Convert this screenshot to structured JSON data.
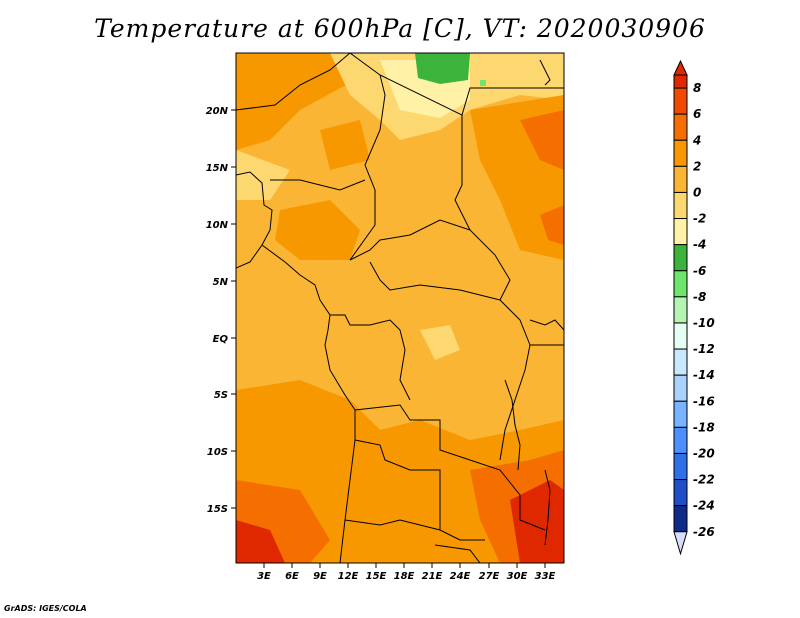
{
  "title": "Temperature at 600hPa [C], VT: 2020030906",
  "credit": "GrADS: IGES/COLA",
  "map": {
    "lat_ticks": [
      "20N",
      "15N",
      "10N",
      "5N",
      "EQ",
      "5S",
      "10S",
      "15S"
    ],
    "lon_ticks": [
      "3E",
      "6E",
      "9E",
      "12E",
      "15E",
      "18E",
      "21E",
      "24E",
      "27E",
      "30E",
      "33E"
    ]
  },
  "colorbar": {
    "levels": [
      "8",
      "6",
      "4",
      "2",
      "0",
      "-2",
      "-4",
      "-6",
      "-8",
      "-10",
      "-12",
      "-14",
      "-16",
      "-18",
      "-20",
      "-22",
      "-24",
      "-26"
    ],
    "colors": [
      "#e02800",
      "#f04a00",
      "#f46f00",
      "#f89800",
      "#fbb535",
      "#fdd770",
      "#fff2a6",
      "#3cb43c",
      "#6ee66e",
      "#b4f5b4",
      "#e6fff5",
      "#c7e8ff",
      "#a9d2ff",
      "#78b3ff",
      "#4d8fff",
      "#2f6fe8",
      "#1e4fc8",
      "#0f2b8a",
      "#0a1560"
    ],
    "low_color": "#d8ddff"
  },
  "fill_colors": {
    "warm4": "#f89800",
    "warm2": "#fbb535",
    "warm0": "#fdd770",
    "cool2": "#fff2a6",
    "hot6": "#f46f00",
    "hot8": "#e02800",
    "green": "#3cb43c"
  }
}
